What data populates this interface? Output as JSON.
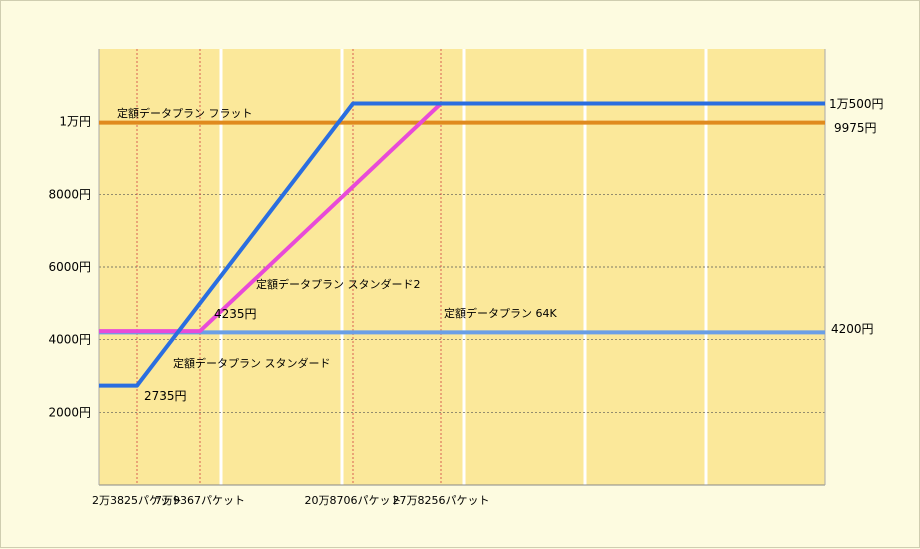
{
  "chart_data": {
    "type": "line",
    "title": "",
    "xlabel": "",
    "ylabel": "",
    "grid": true,
    "x_breaks": [
      {
        "label": "2万3825パケット",
        "value": 23825
      },
      {
        "label": "7万9367パケット",
        "value": 79367
      },
      {
        "label": "20万8706パケット",
        "value": 208706
      },
      {
        "label": "27万8256パケット",
        "value": 278256
      }
    ],
    "y_ticks": [
      {
        "label": "2000円",
        "value": 2000
      },
      {
        "label": "4000円",
        "value": 4000
      },
      {
        "label": "6000円",
        "value": 6000
      },
      {
        "label": "8000円",
        "value": 8000
      },
      {
        "label": "1万円",
        "value": 10000
      }
    ],
    "ylim": [
      0,
      12000
    ],
    "series": [
      {
        "name": "定額データプラン フラット",
        "color": "#e08a1e",
        "points": [
          [
            0,
            9975
          ],
          [
            580000,
            9975
          ]
        ]
      },
      {
        "name": "定額データプラン 64K",
        "color": "#6a9fe6",
        "points": [
          [
            0,
            4200
          ],
          [
            580000,
            4200
          ]
        ]
      },
      {
        "name": "定額データプラン スタンダード2",
        "color": "#e84ad8",
        "points": [
          [
            0,
            4235
          ],
          [
            79367,
            4235
          ],
          [
            278256,
            10500
          ],
          [
            580000,
            10500
          ]
        ]
      },
      {
        "name": "定額データプラン スタンダード",
        "color": "#2a6ee0",
        "points": [
          [
            0,
            2735
          ],
          [
            23825,
            2735
          ],
          [
            208706,
            10500
          ],
          [
            580000,
            10500
          ]
        ]
      }
    ],
    "annotations": [
      {
        "text": "2735円",
        "x": 23825,
        "y": 2735
      },
      {
        "text": "4235円",
        "x": 79367,
        "y": 4235
      },
      {
        "text": "1万500円",
        "x": 580000,
        "y": 10500
      },
      {
        "text": "9975円",
        "x": 580000,
        "y": 9975
      },
      {
        "text": "4200円",
        "x": 580000,
        "y": 4200
      }
    ]
  }
}
